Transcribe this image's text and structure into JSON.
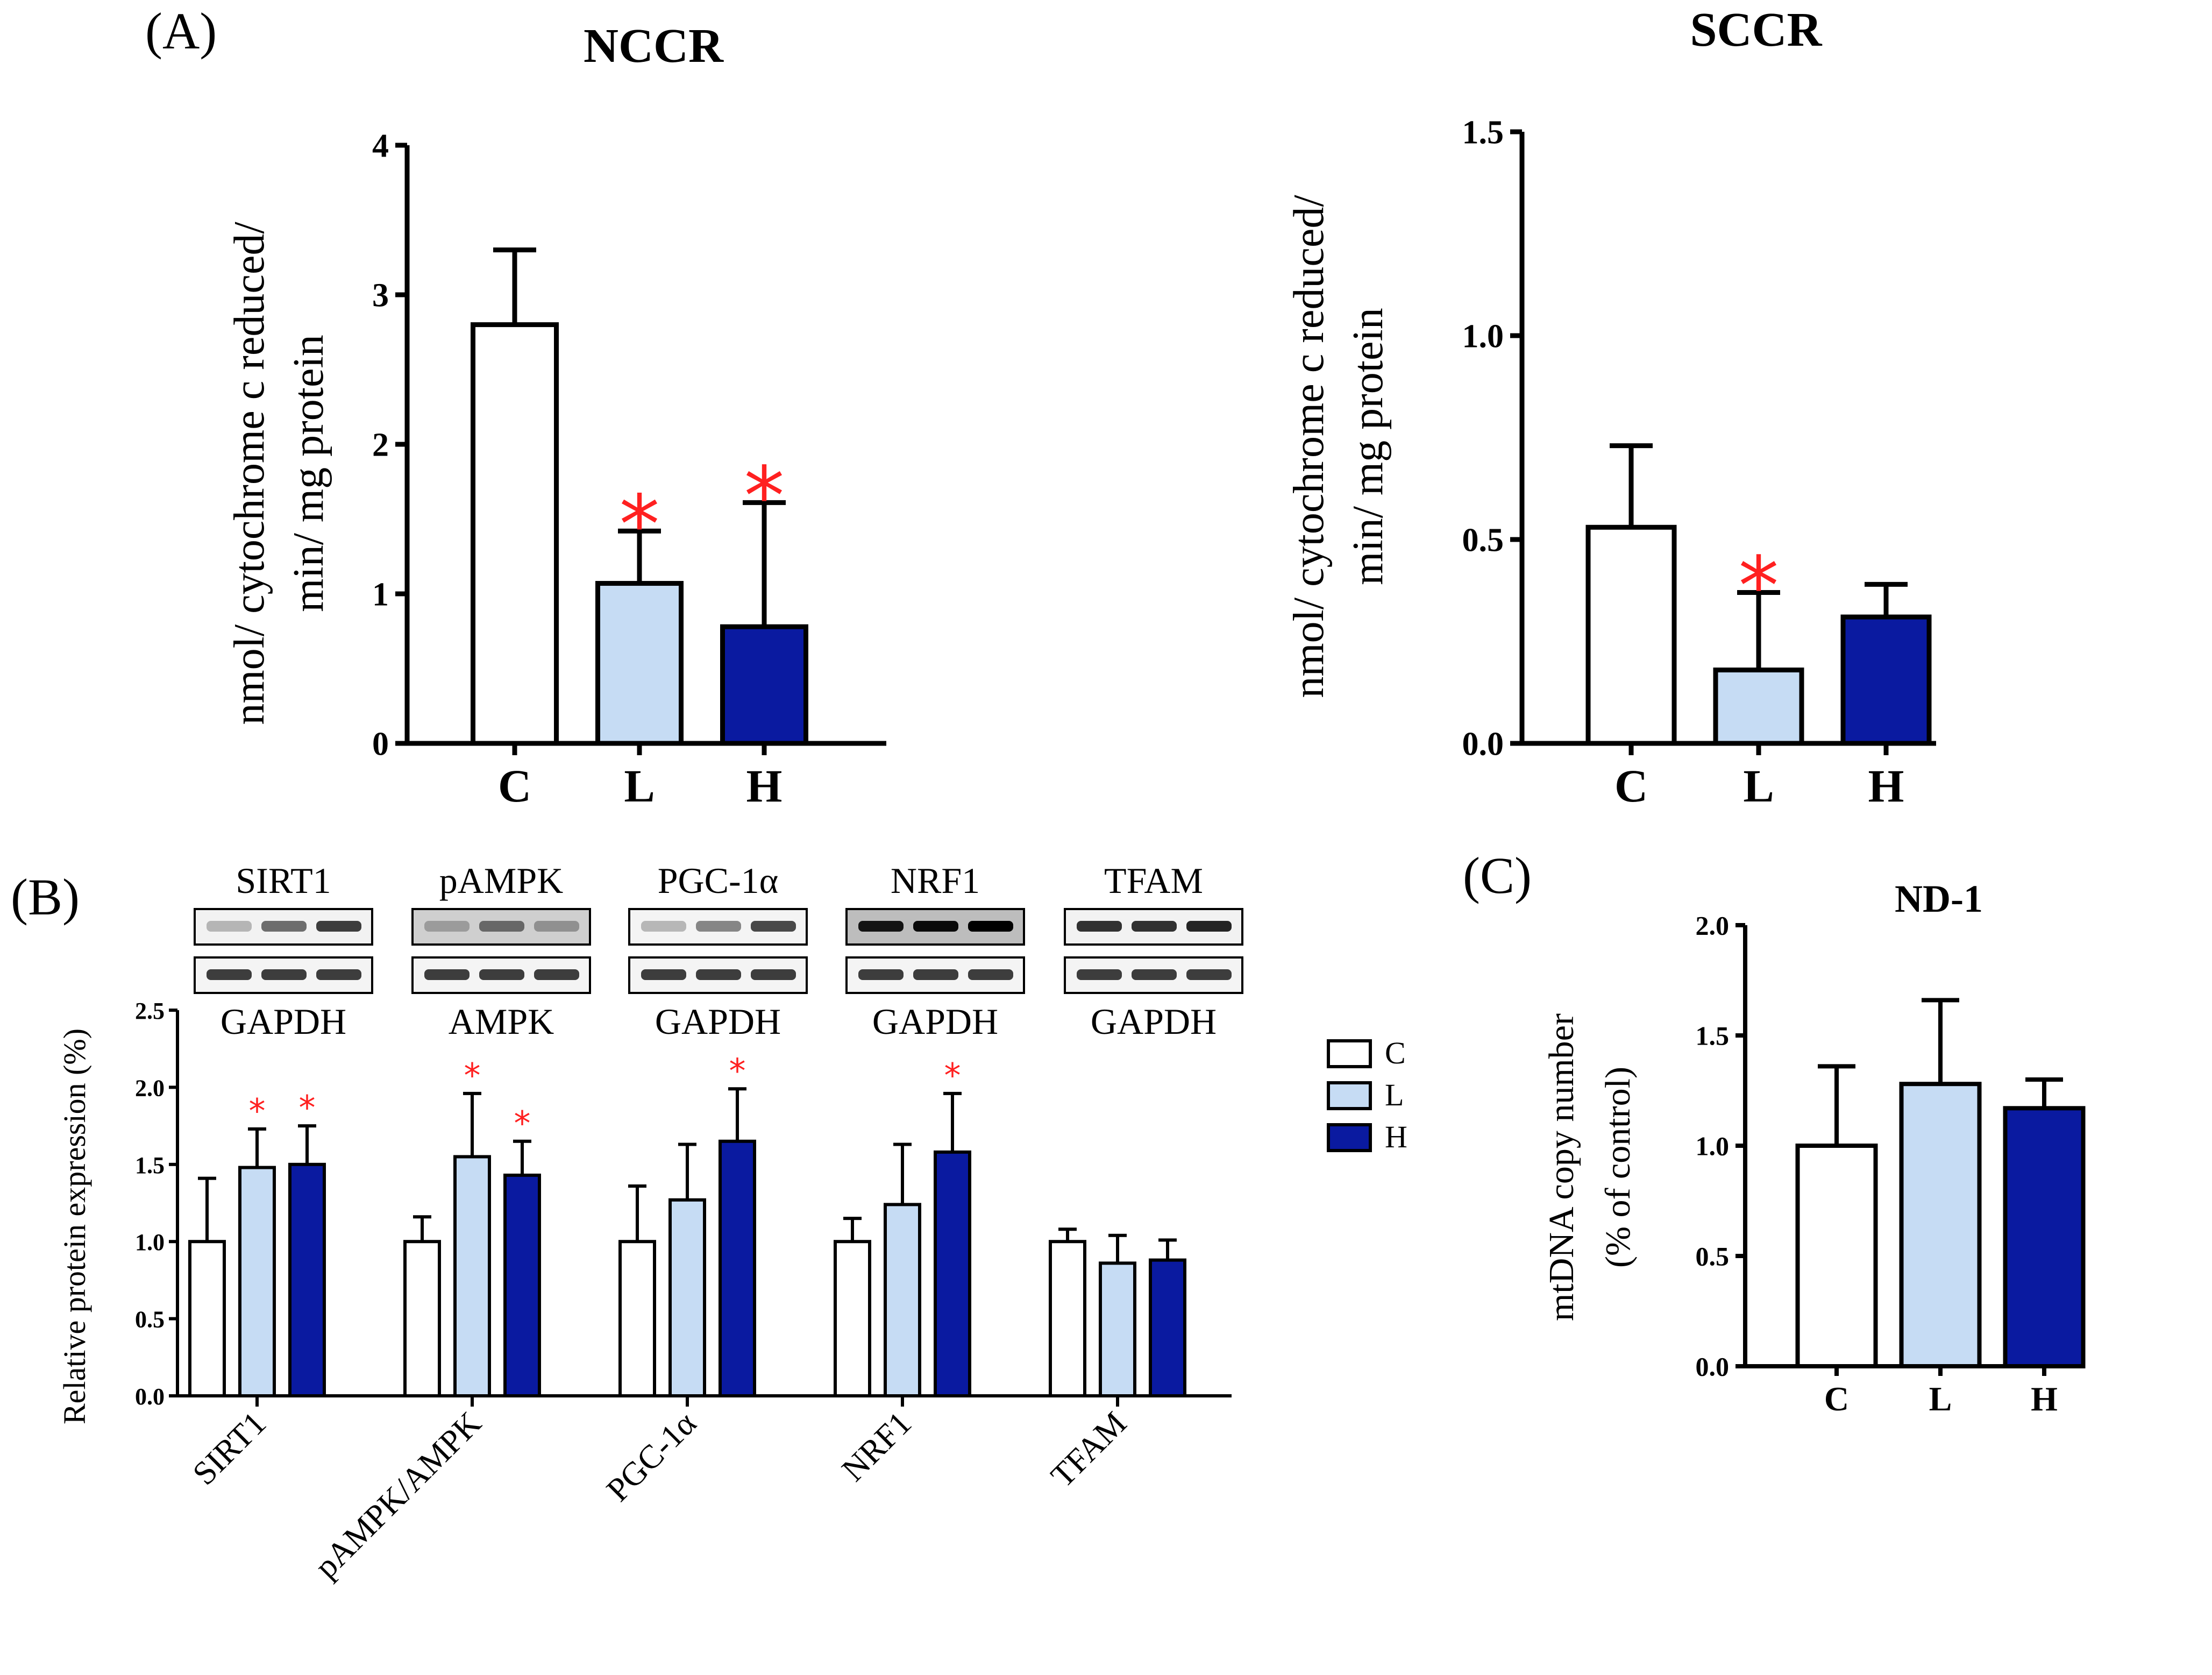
{
  "colors": {
    "C": "#ffffff",
    "L": "#c6dcf4",
    "H": "#0a1aa0",
    "axis": "#000000",
    "significance": "#ff2020"
  },
  "panels": {
    "A": {
      "label": "(A)",
      "ylabel_line1": "nmol/ cytochrome c reduced/",
      "ylabel_line2": "min/ mg protein"
    },
    "B": {
      "label": "(B)",
      "ylabel": "Relative protein expression (%)",
      "blots": [
        {
          "top": "SIRT1",
          "bottom": "GAPDH"
        },
        {
          "top": "pAMPK",
          "bottom": "AMPK"
        },
        {
          "top": "PGC-1α",
          "bottom": "GAPDH"
        },
        {
          "top": "NRF1",
          "bottom": "GAPDH"
        },
        {
          "top": "TFAM",
          "bottom": "GAPDH"
        }
      ],
      "legend": [
        "C",
        "L",
        "H"
      ]
    },
    "C": {
      "label": "(C)",
      "ylabel_line1": "mtDNA copy number",
      "ylabel_line2": "(% of control)"
    }
  },
  "chart_data": [
    {
      "id": "nccr",
      "type": "bar",
      "title": "NCCR",
      "categories": [
        "C",
        "L",
        "H"
      ],
      "values": [
        2.8,
        1.07,
        0.78
      ],
      "errors": [
        0.5,
        0.35,
        0.83
      ],
      "significant": [
        false,
        true,
        true
      ],
      "ylim": [
        0,
        4
      ],
      "yticks": [
        0,
        1,
        2,
        3,
        4
      ],
      "ytick_labels": [
        "0",
        "1",
        "2",
        "3",
        "4"
      ],
      "ylabel": "nmol/ cytochrome c reduced/ min/ mg protein"
    },
    {
      "id": "sccr",
      "type": "bar",
      "title": "SCCR",
      "categories": [
        "C",
        "L",
        "H"
      ],
      "values": [
        0.53,
        0.18,
        0.31
      ],
      "errors": [
        0.2,
        0.19,
        0.08
      ],
      "significant": [
        false,
        true,
        false
      ],
      "ylim": [
        0,
        1.5
      ],
      "yticks": [
        0,
        0.5,
        1.0,
        1.5
      ],
      "ytick_labels": [
        "0.0",
        "0.5",
        "1.0",
        "1.5"
      ],
      "ylabel": "nmol/ cytochrome c reduced/ min/ mg protein"
    },
    {
      "id": "protein",
      "type": "bar",
      "title": "",
      "categories": [
        "SIRT1",
        "pAMPK/AMPK",
        "PGC-1α",
        "NRF1",
        "TFAM"
      ],
      "series": [
        {
          "name": "C",
          "values": [
            1.0,
            1.0,
            1.0,
            1.0,
            1.0
          ],
          "errors": [
            0.41,
            0.16,
            0.36,
            0.15,
            0.08
          ],
          "significant": [
            false,
            false,
            false,
            false,
            false
          ]
        },
        {
          "name": "L",
          "values": [
            1.48,
            1.55,
            1.27,
            1.24,
            0.86
          ],
          "errors": [
            0.25,
            0.41,
            0.36,
            0.39,
            0.18
          ],
          "significant": [
            true,
            true,
            false,
            false,
            false
          ]
        },
        {
          "name": "H",
          "values": [
            1.5,
            1.43,
            1.65,
            1.58,
            0.88
          ],
          "errors": [
            0.25,
            0.22,
            0.34,
            0.38,
            0.13
          ],
          "significant": [
            true,
            true,
            true,
            true,
            false
          ]
        }
      ],
      "ylim": [
        0,
        2.5
      ],
      "yticks": [
        0,
        0.5,
        1.0,
        1.5,
        2.0,
        2.5
      ],
      "ytick_labels": [
        "0.0",
        "0.5",
        "1.0",
        "1.5",
        "2.0",
        "2.5"
      ],
      "ylabel": "Relative protein expression (%)"
    },
    {
      "id": "nd1",
      "type": "bar",
      "title": "ND-1",
      "categories": [
        "C",
        "L",
        "H"
      ],
      "values": [
        1.0,
        1.28,
        1.17
      ],
      "errors": [
        0.36,
        0.38,
        0.13
      ],
      "significant": [
        false,
        false,
        false
      ],
      "ylim": [
        0,
        2.0
      ],
      "yticks": [
        0,
        0.5,
        1.0,
        1.5,
        2.0
      ],
      "ytick_labels": [
        "0.0",
        "0.5",
        "1.0",
        "1.5",
        "2.0"
      ],
      "ylabel": "mtDNA copy number (% of control)"
    }
  ]
}
